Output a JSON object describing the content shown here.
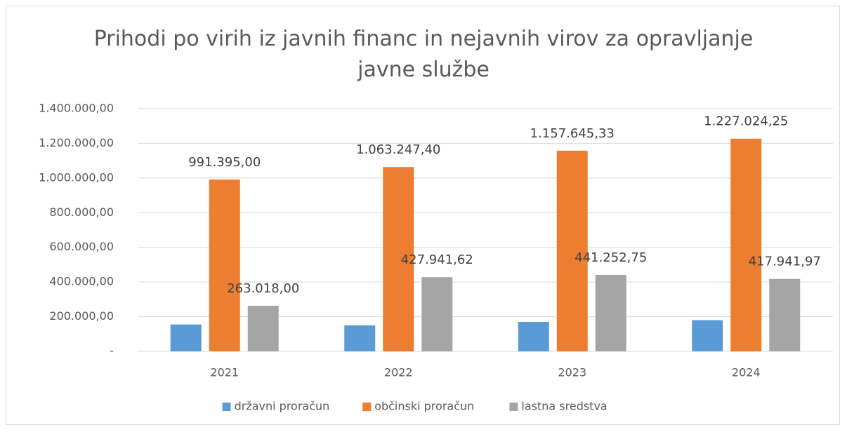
{
  "chart_data": {
    "type": "bar",
    "title": "Prihodi po virih iz javnih financ in nejavnih virov za opravljanje javne službe",
    "categories": [
      "2021",
      "2022",
      "2023",
      "2024"
    ],
    "series": [
      {
        "name": "državni proračun",
        "color": "#5b9bd5",
        "values": [
          155000,
          150000,
          170000,
          180000
        ]
      },
      {
        "name": "občinski proračun",
        "color": "#ed7d31",
        "values": [
          991395.0,
          1063247.4,
          1157645.33,
          1227024.25
        ],
        "value_labels": [
          "991.395,00",
          "1.063.247,40",
          "1.157.645,33",
          "1.227.024,25"
        ]
      },
      {
        "name": "lastna sredstva",
        "color": "#a5a5a5",
        "values": [
          263018.0,
          427941.62,
          441252.75,
          417941.97
        ],
        "value_labels": [
          "263.018,00",
          "427.941,62",
          "441.252,75",
          "417.941,97"
        ]
      }
    ],
    "ylim": [
      0,
      1400000
    ],
    "yticks": [
      {
        "value": 0,
        "label": "-"
      },
      {
        "value": 200000,
        "label": "200.000,00"
      },
      {
        "value": 400000,
        "label": "400.000,00"
      },
      {
        "value": 600000,
        "label": "600.000,00"
      },
      {
        "value": 800000,
        "label": "800.000,00"
      },
      {
        "value": 1000000,
        "label": "1.000.000,00"
      },
      {
        "value": 1200000,
        "label": "1.200.000,00"
      },
      {
        "value": 1400000,
        "label": "1.400.000,00"
      }
    ],
    "grid": true,
    "legend": "bottom"
  }
}
